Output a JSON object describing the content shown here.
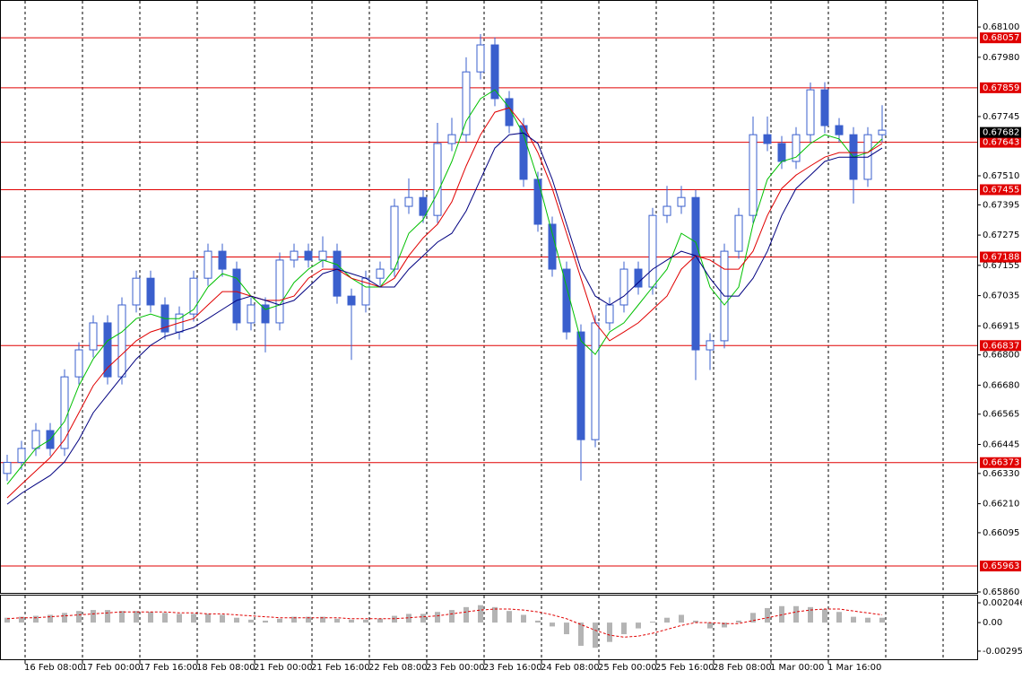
{
  "chart_data": {
    "type": "candlestick",
    "time_labels": [
      "16 Feb 08:00",
      "17 Feb 00:00",
      "17 Feb 16:00",
      "18 Feb 08:00",
      "21 Feb 00:00",
      "21 Feb 16:00",
      "22 Feb 08:00",
      "23 Feb 00:00",
      "23 Feb 16:00",
      "24 Feb 08:00",
      "25 Feb 00:00",
      "25 Feb 16:00",
      "28 Feb 08:00",
      "1 Mar 00:00",
      "1 Mar 16:00"
    ],
    "open": [
      0.6633,
      0.66374,
      0.66429,
      0.665,
      0.66429,
      0.66713,
      0.6682,
      0.66927,
      0.66713,
      0.66998,
      0.67104,
      0.66998,
      0.66891,
      0.66962,
      0.67104,
      0.67211,
      0.6714,
      0.66927,
      0.66998,
      0.66927,
      0.67176,
      0.67211,
      0.67176,
      0.67211,
      0.67033,
      0.66998,
      0.67104,
      0.6714,
      0.67389,
      0.67424,
      0.67353,
      0.67638,
      0.67673,
      0.67922,
      0.68029,
      0.67816,
      0.67709,
      0.67496,
      0.67318,
      0.6714,
      0.66891,
      0.66464,
      0.66927,
      0.66998,
      0.6714,
      0.67069,
      0.67353,
      0.67389,
      0.67424,
      0.6682,
      0.66856,
      0.67211,
      0.67353,
      0.67673,
      0.67638,
      0.67567,
      0.67673,
      0.67851,
      0.67709,
      0.67673,
      0.67496,
      0.67673
    ],
    "high": [
      0.66404,
      0.66459,
      0.6653,
      0.6653,
      0.66743,
      0.6685,
      0.66957,
      0.66957,
      0.67028,
      0.67134,
      0.67134,
      0.67028,
      0.66992,
      0.67134,
      0.67241,
      0.67241,
      0.6717,
      0.67028,
      0.67028,
      0.67206,
      0.67241,
      0.67241,
      0.6727,
      0.67241,
      0.67063,
      0.67134,
      0.6717,
      0.67419,
      0.675,
      0.67454,
      0.6772,
      0.6774,
      0.6798,
      0.68072,
      0.68059,
      0.67846,
      0.67739,
      0.67526,
      0.67348,
      0.6717,
      0.66921,
      0.66957,
      0.67028,
      0.6717,
      0.6717,
      0.67383,
      0.6747,
      0.6747,
      0.67454,
      0.66886,
      0.67241,
      0.67383,
      0.67745,
      0.67745,
      0.67668,
      0.67703,
      0.6788,
      0.67881,
      0.67739,
      0.67703,
      0.67703,
      0.6779
    ],
    "low": [
      0.663,
      0.66344,
      0.66399,
      0.66399,
      0.66399,
      0.66683,
      0.6679,
      0.66683,
      0.66683,
      0.66968,
      0.66968,
      0.66861,
      0.66861,
      0.66932,
      0.67074,
      0.6711,
      0.66897,
      0.66897,
      0.6681,
      0.66897,
      0.67146,
      0.67146,
      0.67146,
      0.67003,
      0.6678,
      0.66968,
      0.67074,
      0.6711,
      0.67359,
      0.67323,
      0.67323,
      0.67608,
      0.67643,
      0.67892,
      0.67786,
      0.67679,
      0.67466,
      0.67288,
      0.6711,
      0.66861,
      0.66302,
      0.66434,
      0.66897,
      0.66968,
      0.67039,
      0.67039,
      0.67323,
      0.67359,
      0.667,
      0.6674,
      0.66826,
      0.67181,
      0.67323,
      0.67608,
      0.67537,
      0.67537,
      0.67643,
      0.67679,
      0.67643,
      0.674,
      0.67466,
      0.67643
    ],
    "close": [
      0.66374,
      0.66429,
      0.665,
      0.66429,
      0.66713,
      0.6682,
      0.66927,
      0.66713,
      0.66998,
      0.67104,
      0.66998,
      0.66891,
      0.66962,
      0.67104,
      0.67211,
      0.6714,
      0.66927,
      0.66998,
      0.66927,
      0.67176,
      0.67211,
      0.67176,
      0.67211,
      0.67033,
      0.66998,
      0.67104,
      0.6714,
      0.67389,
      0.67424,
      0.67353,
      0.67638,
      0.67673,
      0.67922,
      0.68029,
      0.67816,
      0.67709,
      0.67496,
      0.67318,
      0.6714,
      0.66891,
      0.66464,
      0.66927,
      0.66998,
      0.6714,
      0.67069,
      0.67353,
      0.67389,
      0.67424,
      0.6682,
      0.66856,
      0.67211,
      0.67353,
      0.67673,
      0.67638,
      0.67567,
      0.67673,
      0.67851,
      0.67709,
      0.67673,
      0.67496,
      0.67673,
      0.67691
    ],
    "color": "#3a5fcd",
    "ylim": [
      0.6586,
      0.68207
    ],
    "yticks": [
      {
        "value": 0.681,
        "label": "0.68100"
      },
      {
        "value": 0.6798,
        "label": "0.67980"
      },
      0.67745,
      {
        "value": 0.6751,
        "label": "0.67510"
      },
      0.67395,
      0.67275,
      0.67155,
      0.67035,
      0.66915,
      {
        "value": 0.668,
        "label": "0.66800"
      },
      {
        "value": 0.6668,
        "label": "0.66680"
      },
      0.66565,
      0.66445,
      {
        "value": 0.6633,
        "label": "0.66330"
      },
      {
        "value": 0.6621,
        "label": "0.66210"
      },
      0.66095,
      {
        "value": 0.6586,
        "label": "0.65860"
      }
    ],
    "levels": {
      "color": "#e00000",
      "values": [
        0.68057,
        0.67859,
        0.67643,
        0.67455,
        0.67188,
        0.66837,
        0.66373,
        0.65963
      ]
    },
    "current_price": 0.67682,
    "series": [
      {
        "color": "#00c000",
        "values": [
          0.66287,
          0.66358,
          0.66429,
          0.66464,
          0.66536,
          0.66678,
          0.66784,
          0.66856,
          0.66891,
          0.66944,
          0.66962,
          0.66944,
          0.66944,
          0.6698,
          0.67069,
          0.67122,
          0.67104,
          0.67033,
          0.6698,
          0.66998,
          0.67087,
          0.6714,
          0.67176,
          0.67158,
          0.67104,
          0.67069,
          0.67069,
          0.6714,
          0.67282,
          0.67336,
          0.67442,
          0.67567,
          0.67727,
          0.67816,
          0.67851,
          0.6778,
          0.67673,
          0.67496,
          0.67282,
          0.67069,
          0.66856,
          0.66802,
          0.66891,
          0.66927,
          0.66998,
          0.67069,
          0.6714,
          0.67282,
          0.67247,
          0.67069,
          0.66998,
          0.67069,
          0.67318,
          0.67496,
          0.67567,
          0.67584,
          0.67638,
          0.67673,
          0.67656,
          0.67584,
          0.67602,
          0.67656
        ]
      },
      {
        "color": "#e00000",
        "values": [
          0.66233,
          0.66287,
          0.6634,
          0.66393,
          0.66464,
          0.66571,
          0.66678,
          0.66749,
          0.66802,
          0.66856,
          0.66891,
          0.66909,
          0.66927,
          0.66944,
          0.66998,
          0.67051,
          0.67051,
          0.67033,
          0.67016,
          0.67016,
          0.67033,
          0.67104,
          0.6714,
          0.6714,
          0.67104,
          0.67087,
          0.67069,
          0.67104,
          0.67193,
          0.67264,
          0.67318,
          0.67407,
          0.67549,
          0.67673,
          0.67762,
          0.6778,
          0.67709,
          0.67602,
          0.6746,
          0.67282,
          0.67104,
          0.66927,
          0.66856,
          0.66891,
          0.66927,
          0.6698,
          0.67033,
          0.6714,
          0.67193,
          0.67176,
          0.6714,
          0.6714,
          0.67211,
          0.67353,
          0.6746,
          0.67513,
          0.67549,
          0.67584,
          0.67602,
          0.67602,
          0.67602,
          0.67638
        ]
      },
      {
        "color": "#000080",
        "values": [
          0.66208,
          0.66251,
          0.66287,
          0.66322,
          0.66376,
          0.66464,
          0.66571,
          0.66642,
          0.66713,
          0.66784,
          0.66838,
          0.66873,
          0.66891,
          0.66909,
          0.66944,
          0.6698,
          0.67016,
          0.67033,
          0.67016,
          0.66998,
          0.67016,
          0.67069,
          0.67122,
          0.6714,
          0.67122,
          0.67104,
          0.67069,
          0.67069,
          0.6714,
          0.67193,
          0.67247,
          0.67282,
          0.67371,
          0.67496,
          0.6762,
          0.67673,
          0.6768,
          0.67638,
          0.67496,
          0.67318,
          0.6714,
          0.67033,
          0.66998,
          0.67033,
          0.67087,
          0.6714,
          0.67176,
          0.67211,
          0.67193,
          0.67104,
          0.67033,
          0.67033,
          0.67104,
          0.67211,
          0.67353,
          0.6746,
          0.67513,
          0.67567,
          0.67584,
          0.67584,
          0.67584,
          0.6762
        ]
      }
    ],
    "macd": {
      "histogram": [
        0.0005,
        0.0006,
        0.0007,
        0.0008,
        0.001,
        0.0012,
        0.0013,
        0.0013,
        0.0012,
        0.0012,
        0.0011,
        0.001,
        0.0009,
        0.0009,
        0.0009,
        0.0008,
        0.0005,
        0.0003,
        0.0002,
        0.0004,
        0.0006,
        0.0006,
        0.0006,
        0.0004,
        0.0003,
        0.0003,
        0.0004,
        0.0007,
        0.0009,
        0.0009,
        0.0011,
        0.0013,
        0.0016,
        0.0018,
        0.0016,
        0.0012,
        0.0008,
        0.0002,
        -0.0004,
        -0.0012,
        -0.0024,
        -0.0026,
        -0.002,
        -0.0012,
        -0.0006,
        0.0001,
        0.0005,
        0.0008,
        0.0002,
        -0.0006,
        -0.0005,
        0.0002,
        0.001,
        0.0015,
        0.0017,
        0.0017,
        0.0016,
        0.0014,
        0.0011,
        0.0006,
        0.0005,
        0.0005
      ],
      "signal": [
        0.0004,
        0.0005,
        0.0005,
        0.0006,
        0.0007,
        0.0008,
        0.0009,
        0.001,
        0.0011,
        0.0011,
        0.0011,
        0.0011,
        0.001,
        0.001,
        0.0009,
        0.0009,
        0.0008,
        0.0007,
        0.0006,
        0.0005,
        0.0005,
        0.0005,
        0.0005,
        0.0005,
        0.0004,
        0.0004,
        0.0004,
        0.0004,
        0.0005,
        0.0006,
        0.0007,
        0.0009,
        0.0011,
        0.0013,
        0.0014,
        0.0014,
        0.0013,
        0.0011,
        0.0008,
        0.0004,
        -0.0002,
        -0.0008,
        -0.0013,
        -0.0015,
        -0.0014,
        -0.0011,
        -0.0007,
        -0.0003,
        0,
        0,
        -0.0001,
        -0.0001,
        0.0002,
        0.0005,
        0.0008,
        0.0011,
        0.0013,
        0.0014,
        0.0014,
        0.0012,
        0.001,
        0.0008
      ],
      "hist_color": "#b4b4b4",
      "signal_color": "#e00000",
      "y2lim": [
        -0.00379,
        0.00279
      ],
      "y2ticks": [
        0.002046,
        {
          "value": 0,
          "label": "0.00"
        },
        -0.002952
      ]
    }
  }
}
